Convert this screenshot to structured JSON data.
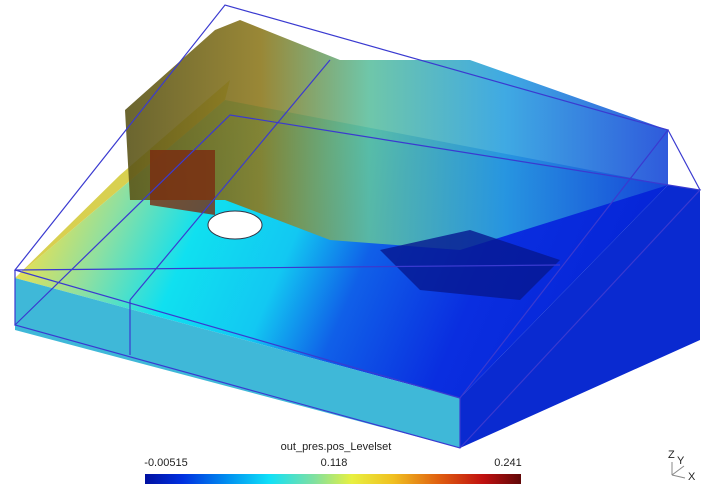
{
  "colorbar": {
    "title": "out_pres.pos_Levelset",
    "labels": [
      "-0.00515",
      "0.118",
      "0.241"
    ]
  },
  "axes_triad": {
    "z": "Z",
    "y": "Y",
    "x": "X"
  }
}
